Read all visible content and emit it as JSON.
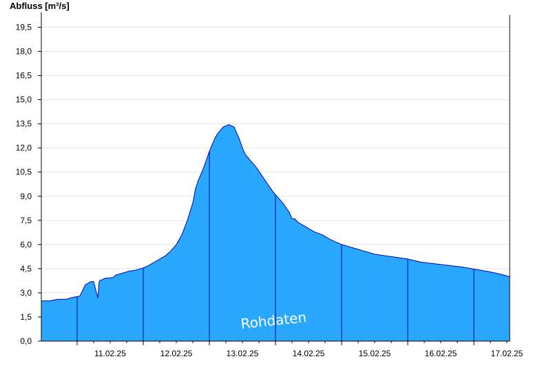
{
  "chart_data": {
    "type": "area",
    "ylabel": "Abfluss [m³/s]",
    "ylim": [
      0,
      20.25
    ],
    "yticks": [
      "0,0",
      "1,5",
      "3,0",
      "4,5",
      "6,0",
      "7,5",
      "9,0",
      "10,5",
      "12,0",
      "13,5",
      "15,0",
      "16,5",
      "18,0",
      "19,5"
    ],
    "xlim": [
      "2025-02-10T11:00",
      "2025-02-17T13:00"
    ],
    "xtick_labels": [
      "11.02.25",
      "12.02.25",
      "13.02.25",
      "14.02.25",
      "15.02.25",
      "16.02.25",
      "17.02.25"
    ],
    "grid": "horizontal",
    "watermark": "Rohdaten",
    "colors": {
      "fill": "#2aa7ff",
      "line": "#0000b8",
      "grid": "#e4e4e4"
    },
    "series": [
      {
        "x": [
          "2025-02-10T11:00",
          "2025-02-10T14:00",
          "2025-02-10T17:00",
          "2025-02-10T20:00",
          "2025-02-10T22:00",
          "2025-02-11T01:00",
          "2025-02-11T03:00",
          "2025-02-11T05:00",
          "2025-02-11T06:00",
          "2025-02-11T07:00",
          "2025-02-11T07:30",
          "2025-02-11T08:00",
          "2025-02-11T08:30",
          "2025-02-11T09:00",
          "2025-02-11T10:00",
          "2025-02-11T13:00",
          "2025-02-11T14:00",
          "2025-02-11T16:00",
          "2025-02-11T19:00",
          "2025-02-11T21:00",
          "2025-02-12T00:00",
          "2025-02-12T02:00",
          "2025-02-12T04:00",
          "2025-02-12T06:00",
          "2025-02-12T08:00",
          "2025-02-12T10:00",
          "2025-02-12T12:00",
          "2025-02-12T14:00",
          "2025-02-12T16:00",
          "2025-02-12T18:00",
          "2025-02-12T19:00",
          "2025-02-12T20:00",
          "2025-02-12T21:00",
          "2025-02-12T22:00",
          "2025-02-12T23:00",
          "2025-02-13T00:00",
          "2025-02-13T01:00",
          "2025-02-13T02:00",
          "2025-02-13T03:00",
          "2025-02-13T05:00",
          "2025-02-13T07:00",
          "2025-02-13T09:00",
          "2025-02-13T10:00",
          "2025-02-13T11:00",
          "2025-02-13T12:00",
          "2025-02-13T13:00",
          "2025-02-13T15:00",
          "2025-02-13T17:00",
          "2025-02-13T19:00",
          "2025-02-13T21:00",
          "2025-02-13T23:00",
          "2025-02-14T01:00",
          "2025-02-14T03:00",
          "2025-02-14T05:00",
          "2025-02-14T06:00",
          "2025-02-14T07:00",
          "2025-02-14T08:00",
          "2025-02-14T10:00",
          "2025-02-14T12:00",
          "2025-02-14T14:00",
          "2025-02-14T17:00",
          "2025-02-14T20:00",
          "2025-02-15T00:00",
          "2025-02-15T04:00",
          "2025-02-15T08:00",
          "2025-02-15T12:00",
          "2025-02-15T16:00",
          "2025-02-15T20:00",
          "2025-02-16T00:00",
          "2025-02-16T05:00",
          "2025-02-16T10:00",
          "2025-02-16T15:00",
          "2025-02-16T20:00",
          "2025-02-17T01:00",
          "2025-02-17T06:00",
          "2025-02-17T10:00",
          "2025-02-17T13:00"
        ],
        "y": [
          2.5,
          2.5,
          2.6,
          2.6,
          2.7,
          2.8,
          3.5,
          3.7,
          3.7,
          3.0,
          2.7,
          3.7,
          3.8,
          3.8,
          3.9,
          3.95,
          4.1,
          4.2,
          4.35,
          4.4,
          4.55,
          4.7,
          4.9,
          5.1,
          5.3,
          5.6,
          6.0,
          6.6,
          7.5,
          8.6,
          9.5,
          10.0,
          10.4,
          10.8,
          11.3,
          11.8,
          12.2,
          12.6,
          12.9,
          13.3,
          13.45,
          13.3,
          12.9,
          12.5,
          12.0,
          11.6,
          11.2,
          10.8,
          10.3,
          9.8,
          9.3,
          8.9,
          8.5,
          8.0,
          7.6,
          7.6,
          7.4,
          7.2,
          7.0,
          6.8,
          6.6,
          6.3,
          6.0,
          5.8,
          5.6,
          5.4,
          5.3,
          5.2,
          5.1,
          4.9,
          4.8,
          4.7,
          4.6,
          4.45,
          4.3,
          4.15,
          4.0
        ]
      }
    ]
  }
}
